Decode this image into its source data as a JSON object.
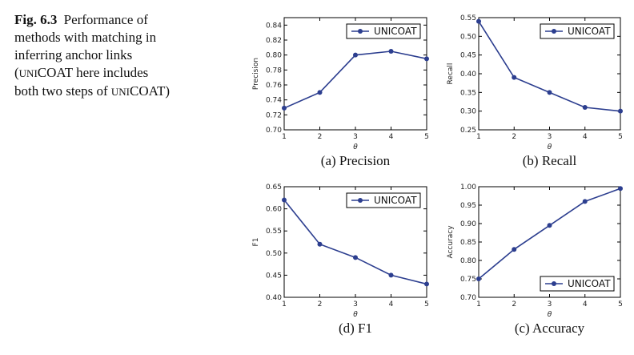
{
  "caption": {
    "label": "Fig. 6.3",
    "line1": "Performance of",
    "line2": "methods with matching in",
    "line3": "inferring anchor links",
    "line4_open": "(",
    "line4_sc": "UNI",
    "line4_rest": "COAT here includes",
    "line5_start": "both two steps of ",
    "line5_sc": "UNI",
    "line5_rest": "COAT)"
  },
  "colors": {
    "series": "#2c3e8f",
    "axis": "#000000"
  },
  "chart_data": [
    {
      "type": "line",
      "subtitle": "(a)  Precision",
      "xlabel": "θ",
      "ylabel": "Precision",
      "x": [
        1,
        2,
        3,
        4,
        5
      ],
      "ylim": [
        0.7,
        0.85
      ],
      "yticks": [
        "0.70",
        "0.72",
        "0.74",
        "0.76",
        "0.78",
        "0.80",
        "0.82",
        "0.84"
      ],
      "legend_loc": "top-right",
      "series": [
        {
          "name": "UNICOAT",
          "values": [
            0.729,
            0.75,
            0.8,
            0.805,
            0.795
          ]
        }
      ]
    },
    {
      "type": "line",
      "subtitle": "(b)  Recall",
      "xlabel": "θ",
      "ylabel": "Recall",
      "x": [
        1,
        2,
        3,
        4,
        5
      ],
      "ylim": [
        0.25,
        0.55
      ],
      "yticks": [
        "0.25",
        "0.30",
        "0.35",
        "0.40",
        "0.45",
        "0.50",
        "0.55"
      ],
      "legend_loc": "top-right",
      "series": [
        {
          "name": "UNICOAT",
          "values": [
            0.54,
            0.39,
            0.35,
            0.31,
            0.3
          ]
        }
      ]
    },
    {
      "type": "line",
      "subtitle": "(d)  F1",
      "xlabel": "θ",
      "ylabel": "F1",
      "x": [
        1,
        2,
        3,
        4,
        5
      ],
      "ylim": [
        0.4,
        0.65
      ],
      "yticks": [
        "0.40",
        "0.45",
        "0.50",
        "0.55",
        "0.60",
        "0.65"
      ],
      "legend_loc": "top-right",
      "series": [
        {
          "name": "UNICOAT",
          "values": [
            0.62,
            0.52,
            0.49,
            0.45,
            0.43
          ]
        }
      ]
    },
    {
      "type": "line",
      "subtitle": "(c)  Accuracy",
      "xlabel": "θ",
      "ylabel": "Accuracy",
      "x": [
        1,
        2,
        3,
        4,
        5
      ],
      "ylim": [
        0.7,
        1.0
      ],
      "yticks": [
        "0.70",
        "0.75",
        "0.80",
        "0.85",
        "0.90",
        "0.95",
        "1.00"
      ],
      "legend_loc": "bottom-right",
      "series": [
        {
          "name": "UNICOAT",
          "values": [
            0.75,
            0.83,
            0.895,
            0.96,
            0.995
          ]
        }
      ]
    }
  ]
}
